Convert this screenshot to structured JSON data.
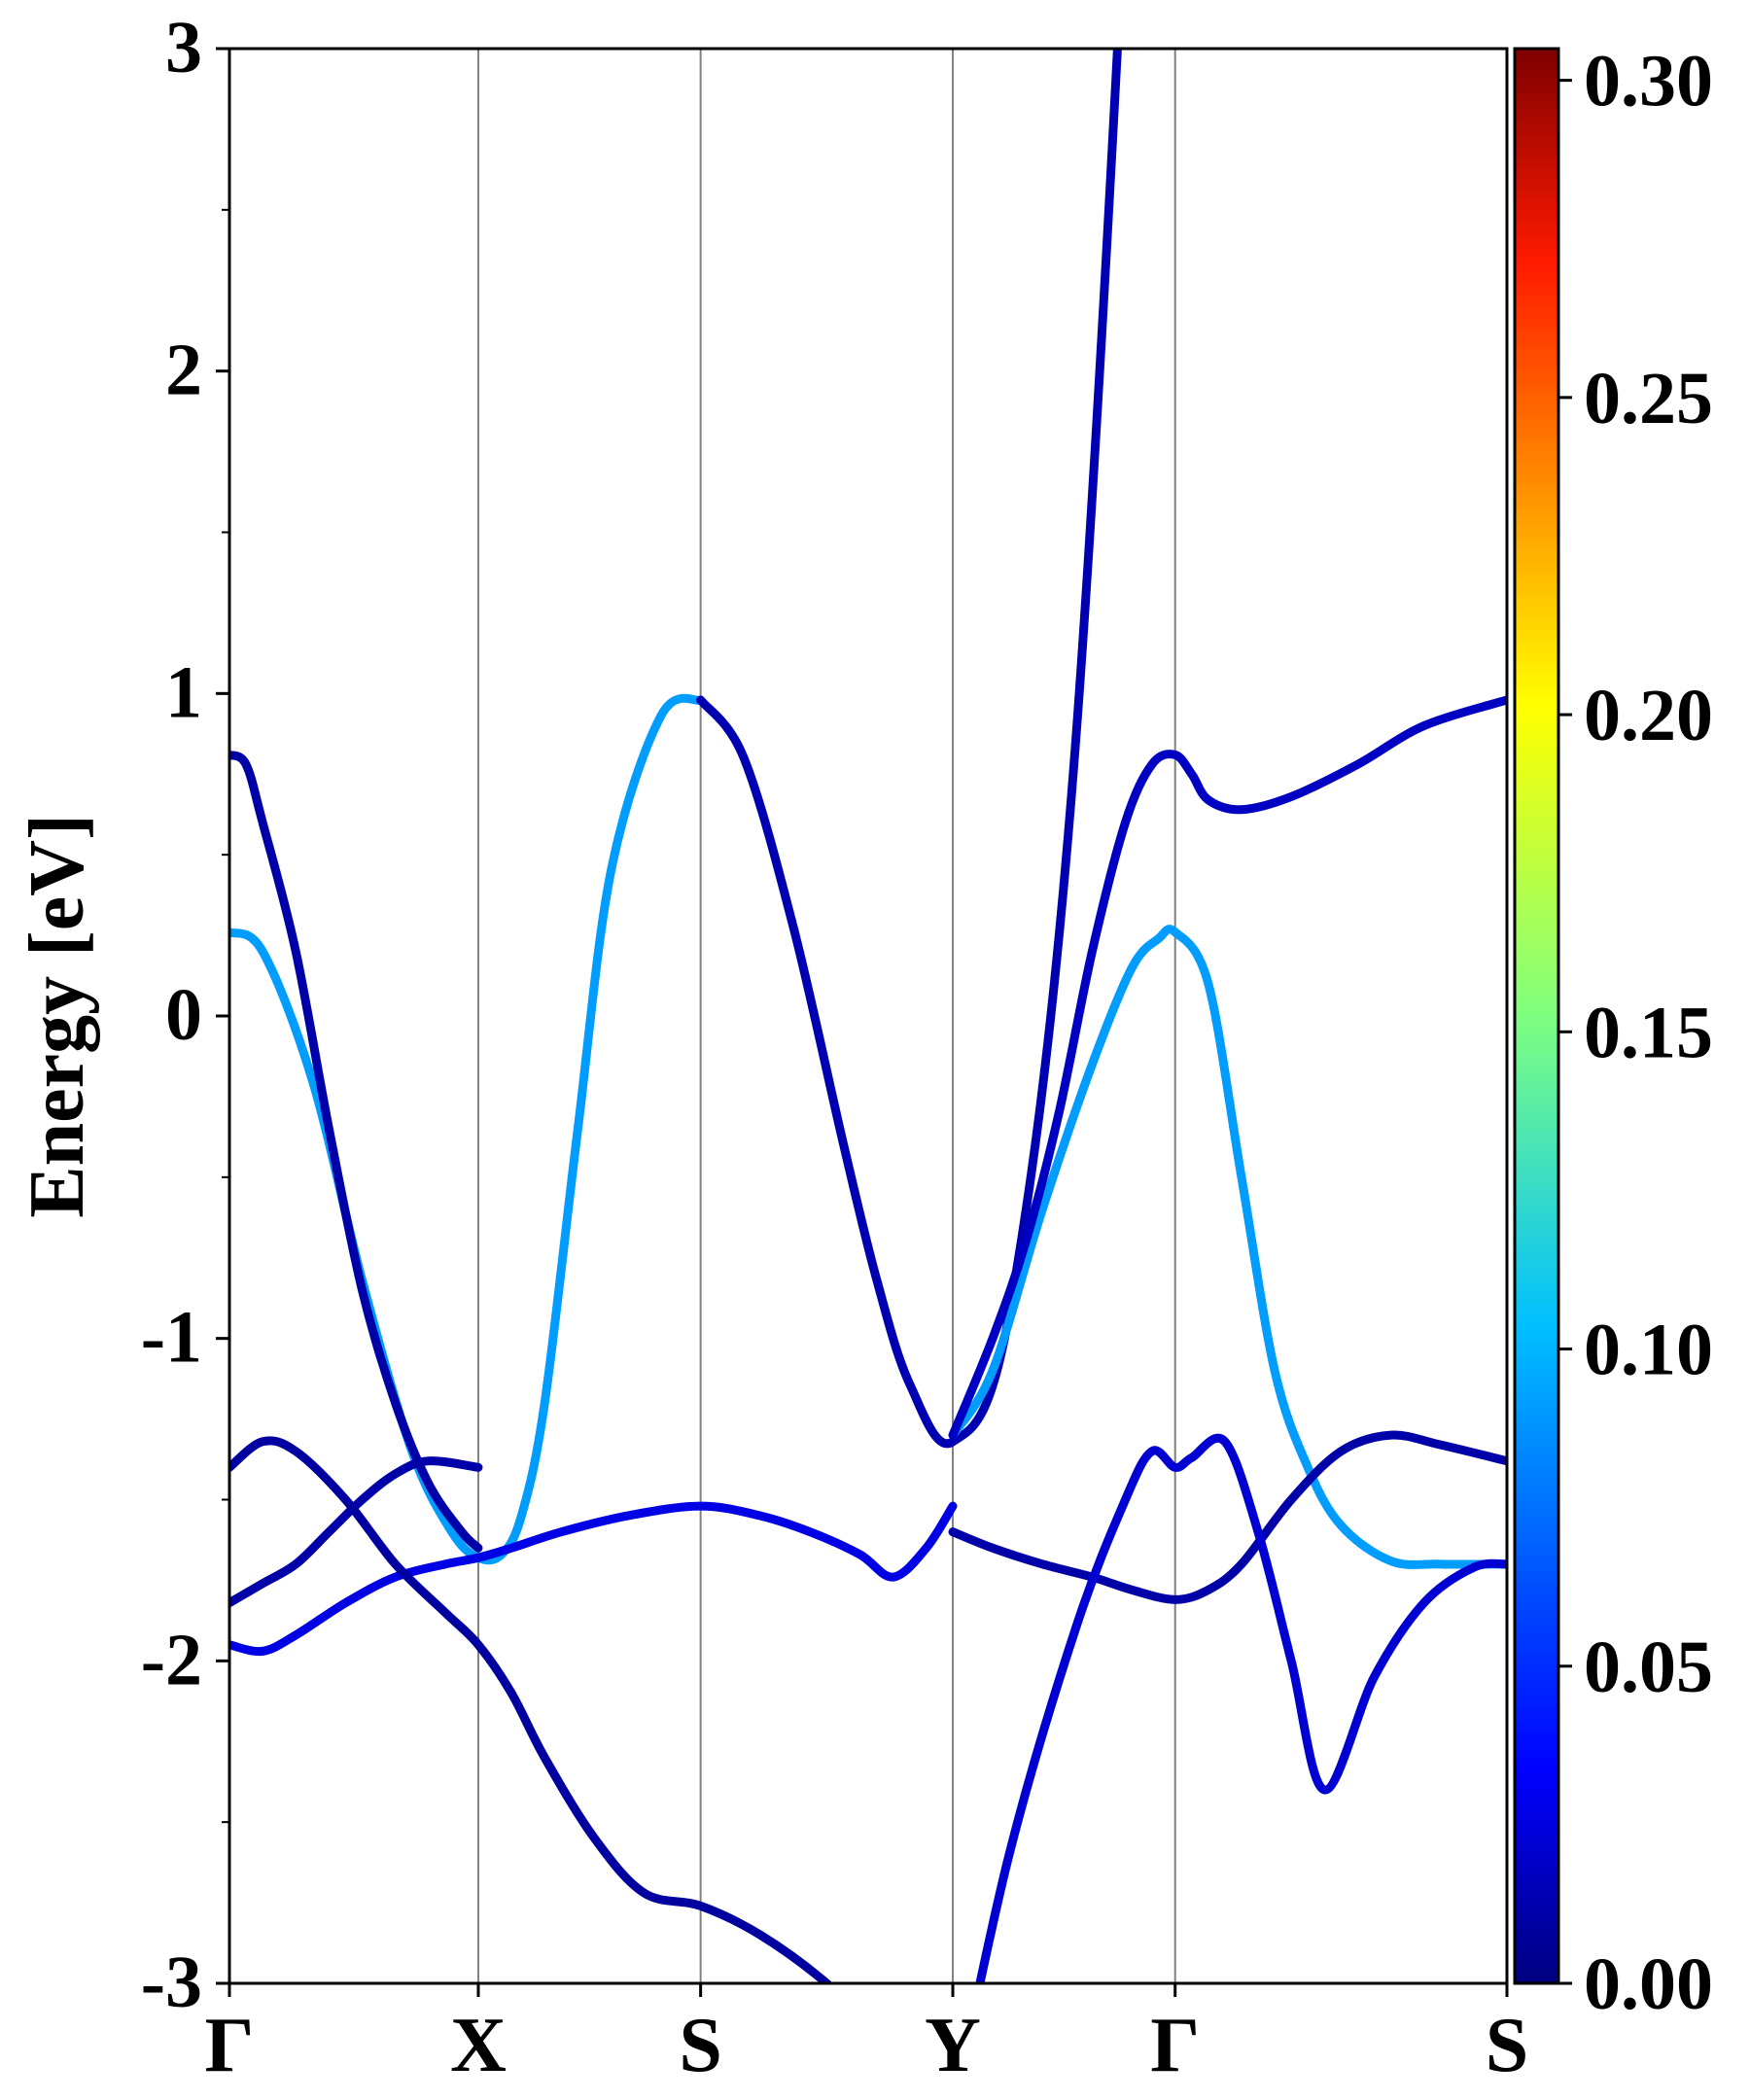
{
  "chart_data": {
    "type": "line",
    "title": "",
    "xlabel": "",
    "ylabel": "Energy [eV]",
    "ylim": [
      -3,
      3
    ],
    "yticks": [
      "3",
      "2",
      "1",
      "0",
      "-1",
      "-2",
      "-3"
    ],
    "yticks_values": [
      3,
      2,
      1,
      0,
      -1,
      -2,
      -3
    ],
    "kpath_labels": [
      "Γ",
      "X",
      "S",
      "Y",
      "Γ",
      "S"
    ],
    "kpath_positions": [
      0,
      0.75,
      1.42,
      2.18,
      2.85,
      3.85
    ],
    "grid": "vertical lines at high-symmetry points",
    "colorbar": {
      "colormap": "jet",
      "range": [
        0,
        0.305
      ],
      "ticks": [
        "0.00",
        "0.05",
        "0.10",
        "0.15",
        "0.20",
        "0.25",
        "0.30"
      ],
      "tick_values": [
        0.0,
        0.05,
        0.1,
        0.15,
        0.2,
        0.25,
        0.3
      ]
    },
    "series": [
      {
        "weight": 0.085,
        "x": [
          0,
          0.1,
          0.25,
          0.4,
          0.55,
          0.67,
          0.75,
          0.82,
          0.88,
          0.95,
          1.05,
          1.15,
          1.3,
          1.42
        ],
        "y": [
          0.26,
          0.2,
          -0.2,
          -0.82,
          -1.35,
          -1.6,
          -1.68,
          -1.67,
          -1.55,
          -1.2,
          -0.35,
          0.45,
          0.93,
          0.98
        ]
      },
      {
        "weight": 0.015,
        "x": [
          1.42,
          1.55,
          1.7,
          1.85,
          1.95,
          2.05,
          2.18,
          2.35,
          2.55,
          2.75,
          2.85
        ]
      },
      {
        "weight": 0.085,
        "x": [
          2.18,
          2.3,
          2.45,
          2.6,
          2.72,
          2.8,
          2.85,
          2.95,
          3.05,
          3.15,
          3.25,
          3.35,
          3.5,
          3.65,
          3.85
        ],
        "y": [
          -1.3,
          -1.1,
          -0.6,
          -0.15,
          0.15,
          0.24,
          0.26,
          0.1,
          -0.5,
          -1.1,
          -1.4,
          -1.58,
          -1.69,
          -1.7,
          -1.7
        ]
      },
      {
        "weight": 0.012,
        "x": [
          0,
          0.05,
          0.1,
          0.2,
          0.3,
          0.4,
          0.5,
          0.6,
          0.7,
          0.75
        ],
        "y": [
          0.81,
          0.78,
          0.6,
          0.2,
          -0.35,
          -0.85,
          -1.2,
          -1.45,
          -1.6,
          -1.65
        ]
      },
      {
        "weight": 0.012,
        "x": [
          2.18,
          2.3,
          2.45,
          2.6,
          2.72,
          2.85,
          2.95,
          3.05,
          3.2,
          3.35,
          3.5,
          3.65,
          3.85
        ],
        "y": [
          -1.6,
          -1.65,
          -1.7,
          -1.74,
          -1.78,
          -1.81,
          -1.78,
          -1.7,
          -1.5,
          -1.35,
          -1.3,
          -1.33,
          -1.38
        ]
      },
      {
        "weight": 0.02,
        "x": [
          2.18,
          2.3,
          2.4,
          2.5,
          2.6,
          2.7,
          2.78,
          2.85,
          2.9,
          2.95,
          3.05,
          3.2,
          3.4,
          3.6,
          3.85
        ],
        "y": [
          -1.3,
          -1.0,
          -0.7,
          -0.3,
          0.2,
          0.6,
          0.78,
          0.81,
          0.75,
          0.67,
          0.64,
          0.68,
          0.78,
          0.9,
          0.98
        ]
      },
      {
        "weight": 0.012,
        "x": [
          0,
          0.1,
          0.2,
          0.3,
          0.4,
          0.5,
          0.6,
          0.75
        ],
        "y": [
          -1.82,
          -1.76,
          -1.7,
          -1.6,
          -1.5,
          -1.42,
          -1.38,
          -1.4
        ]
      },
      {
        "weight": 0.03,
        "x": [
          0,
          0.1,
          0.2,
          0.35,
          0.5,
          0.65,
          0.75,
          0.85,
          1.0,
          1.2,
          1.42,
          1.6,
          1.75,
          1.9,
          2.0,
          2.1,
          2.18
        ],
        "y": [
          -1.95,
          -1.97,
          -1.92,
          -1.82,
          -1.74,
          -1.7,
          -1.68,
          -1.65,
          -1.6,
          -1.55,
          -1.52,
          -1.55,
          -1.6,
          -1.67,
          -1.74,
          -1.65,
          -1.52
        ]
      },
      {
        "weight": 0.01,
        "x": [
          0,
          0.1,
          0.2,
          0.35,
          0.5,
          0.65,
          0.75,
          0.85,
          0.95,
          1.1,
          1.25,
          1.42,
          1.6,
          1.8,
          2.0,
          2.18
        ],
        "y": [
          -1.4,
          -1.32,
          -1.35,
          -1.5,
          -1.7,
          -1.85,
          -1.95,
          -2.1,
          -2.3,
          -2.55,
          -2.72,
          -2.76,
          -2.85,
          -3.0,
          -3.2,
          -3.4
        ]
      },
      {
        "weight": 0.025,
        "x": [
          2.18,
          2.35,
          2.55,
          2.7,
          2.78,
          2.85,
          2.9,
          3.0,
          3.1,
          3.2,
          3.3,
          3.45,
          3.6,
          3.75,
          3.85
        ],
        "y": [
          -3.4,
          -2.6,
          -1.9,
          -1.5,
          -1.35,
          -1.4,
          -1.37,
          -1.32,
          -1.6,
          -2.0,
          -2.4,
          -2.05,
          -1.82,
          -1.71,
          -1.7
        ]
      }
    ]
  }
}
